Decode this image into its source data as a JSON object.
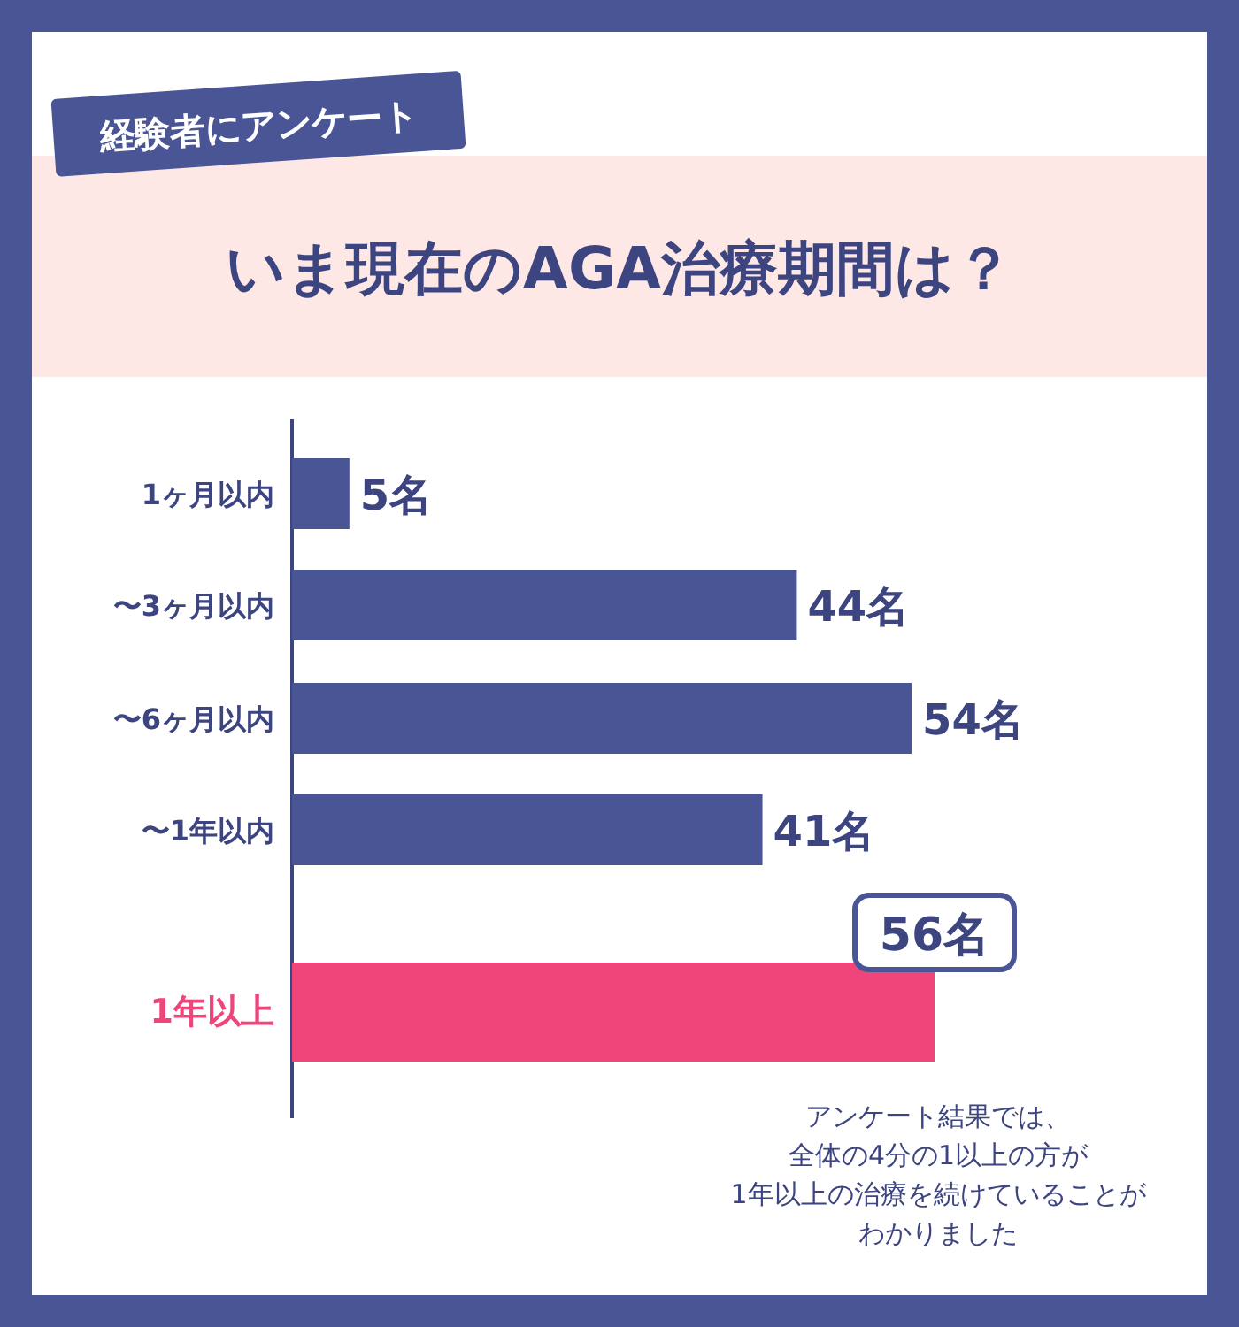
{
  "chart_data": {
    "type": "bar",
    "orientation": "horizontal",
    "title": "いま現在のAGA治療期間は？",
    "subtitle": "経験者にアンケート",
    "categories": [
      "1ヶ月以内",
      "〜3ヶ月以内",
      "〜6ヶ月以内",
      "〜1年以内",
      "1年以上"
    ],
    "values": [
      5,
      44,
      54,
      41,
      56
    ],
    "colors": [
      "#4a5596",
      "#4a5596",
      "#4a5596",
      "#4a5596",
      "#f0457a"
    ],
    "value_labels": [
      "5名",
      "44名",
      "54名",
      "41名",
      "56名"
    ],
    "annotations": [
      "アンケート結果では、",
      "全体の4分の1以上の方が",
      "1年以上の治療を続けていることが",
      "わかりました"
    ]
  }
}
